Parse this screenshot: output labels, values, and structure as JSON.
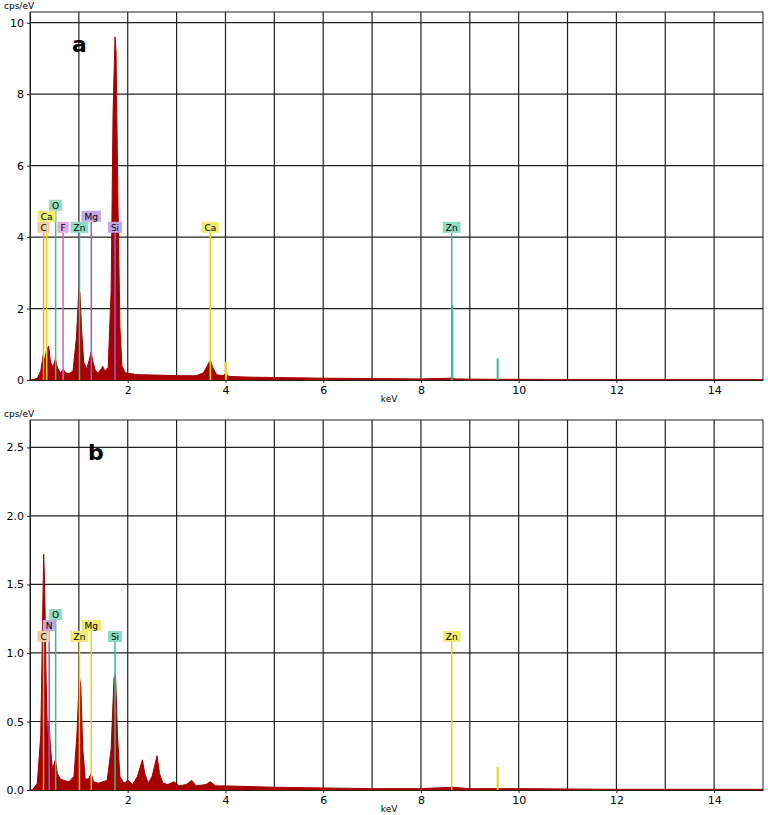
{
  "chart_data": [
    {
      "type": "area",
      "title": "a",
      "x_label": "keV",
      "y_label": "cps/eV",
      "xlim": [
        0,
        15
      ],
      "xticks": [
        2,
        4,
        6,
        8,
        10,
        12,
        14
      ],
      "x_minor_ticks": [
        1,
        3,
        5,
        7,
        9,
        11,
        13
      ],
      "ylim": [
        0,
        10.3
      ],
      "yticks": [
        0,
        2,
        4,
        6,
        8,
        10
      ],
      "grid": true,
      "series": [
        {
          "color": "#a80000",
          "x": [
            0.05,
            0.15,
            0.22,
            0.27,
            0.3,
            0.34,
            0.38,
            0.42,
            0.47,
            0.52,
            0.56,
            0.62,
            0.68,
            0.73,
            0.8,
            0.88,
            0.95,
            1.0,
            1.02,
            1.06,
            1.1,
            1.16,
            1.21,
            1.25,
            1.29,
            1.34,
            1.4,
            1.45,
            1.49,
            1.53,
            1.6,
            1.66,
            1.7,
            1.74,
            1.76,
            1.8,
            1.84,
            1.88,
            1.95,
            2.05,
            2.2,
            2.5,
            2.8,
            3.1,
            3.4,
            3.55,
            3.65,
            3.69,
            3.74,
            3.82,
            3.95,
            4.01,
            4.07,
            4.5,
            5.0,
            6.0,
            7.0,
            8.0,
            8.6,
            8.64,
            8.7,
            9.5,
            10,
            11,
            12,
            13,
            14,
            15
          ],
          "values": [
            0,
            0.05,
            0.25,
            0.7,
            0.55,
            0.85,
            0.95,
            0.5,
            0.35,
            0.6,
            0.35,
            0.2,
            0.3,
            0.2,
            0.18,
            0.25,
            1.2,
            2.5,
            2.45,
            1.3,
            0.5,
            0.3,
            0.55,
            0.78,
            0.5,
            0.25,
            0.2,
            0.3,
            0.38,
            0.25,
            0.35,
            2.5,
            7.5,
            9.6,
            9.2,
            5.0,
            1.5,
            0.4,
            0.2,
            0.18,
            0.15,
            0.14,
            0.13,
            0.12,
            0.12,
            0.2,
            0.45,
            0.55,
            0.35,
            0.15,
            0.12,
            0.18,
            0.1,
            0.08,
            0.07,
            0.05,
            0.04,
            0.03,
            0.05,
            0.07,
            0.03,
            0.02,
            0.02,
            0.01,
            0.01,
            0.01,
            0.01,
            0.01
          ]
        }
      ],
      "markers": [
        {
          "label": "C",
          "x": 0.277,
          "color": "#e8a050"
        },
        {
          "label": "Ca",
          "x": 0.341,
          "color": "#e6d800"
        },
        {
          "label": "O",
          "x": 0.525,
          "color": "#40c080"
        },
        {
          "label": "F",
          "x": 0.677,
          "color": "#d060d0"
        },
        {
          "label": "Zn",
          "x": 1.012,
          "color": "#30c090"
        },
        {
          "label": "Mg",
          "x": 1.254,
          "color": "#9060d0"
        },
        {
          "label": "Si",
          "x": 1.74,
          "color": "#9060d0"
        },
        {
          "label": "Ca",
          "x": 3.69,
          "color": "#e6d800"
        },
        {
          "label": "Zn",
          "x": 8.63,
          "color": "#30c090"
        }
      ],
      "extra_lines": [
        {
          "x": 8.64,
          "y": 2.1,
          "color": "#30c090"
        },
        {
          "x": 9.57,
          "y": 0.6,
          "color": "#30c090"
        },
        {
          "x": 4.01,
          "y": 0.5,
          "color": "#e6d800"
        }
      ]
    },
    {
      "type": "area",
      "title": "b",
      "x_label": "keV",
      "y_label": "cps/eV",
      "xlim": [
        0,
        15
      ],
      "xticks": [
        2,
        4,
        6,
        8,
        10,
        12,
        14
      ],
      "x_minor_ticks": [
        1,
        3,
        5,
        7,
        9,
        11,
        13
      ],
      "ylim": [
        0,
        2.7
      ],
      "yticks": [
        {
          "value": 0,
          "label": "0.0"
        },
        {
          "value": 0.5,
          "label": "0.5"
        },
        {
          "value": 1,
          "label": "1.0"
        },
        {
          "value": 1.5,
          "label": "1.5"
        },
        {
          "value": 2,
          "label": "2.0"
        },
        {
          "value": 2.5,
          "label": "2.5"
        }
      ],
      "grid": true,
      "series": [
        {
          "color": "#a80000",
          "x": [
            0.05,
            0.15,
            0.22,
            0.26,
            0.28,
            0.3,
            0.33,
            0.36,
            0.39,
            0.42,
            0.46,
            0.52,
            0.56,
            0.62,
            0.7,
            0.8,
            0.9,
            0.96,
            1.01,
            1.04,
            1.08,
            1.13,
            1.2,
            1.25,
            1.3,
            1.4,
            1.49,
            1.58,
            1.66,
            1.72,
            1.75,
            1.79,
            1.84,
            1.92,
            2.01,
            2.1,
            2.2,
            2.3,
            2.35,
            2.42,
            2.5,
            2.6,
            2.65,
            2.72,
            2.82,
            2.95,
            3.05,
            3.2,
            3.31,
            3.4,
            3.6,
            3.69,
            3.8,
            4.0,
            5.0,
            6.0,
            7,
            8,
            8.63,
            9,
            10,
            12,
            15
          ],
          "values": [
            0,
            0.05,
            0.4,
            1.3,
            1.72,
            1.5,
            0.8,
            0.35,
            0.5,
            0.3,
            0.15,
            0.22,
            0.12,
            0.08,
            0.07,
            0.06,
            0.1,
            0.4,
            0.83,
            0.75,
            0.3,
            0.08,
            0.08,
            0.12,
            0.06,
            0.05,
            0.06,
            0.07,
            0.3,
            0.82,
            0.84,
            0.4,
            0.1,
            0.05,
            0.07,
            0.04,
            0.1,
            0.22,
            0.12,
            0.05,
            0.1,
            0.25,
            0.12,
            0.05,
            0.04,
            0.06,
            0.03,
            0.04,
            0.07,
            0.03,
            0.04,
            0.06,
            0.03,
            0.03,
            0.02,
            0.015,
            0.01,
            0.01,
            0.02,
            0.01,
            0.01,
            0.005,
            0.005
          ]
        }
      ],
      "markers": [
        {
          "label": "C",
          "x": 0.277,
          "color": "#e8a050"
        },
        {
          "label": "N",
          "x": 0.392,
          "color": "#9060d0"
        },
        {
          "label": "O",
          "x": 0.525,
          "color": "#30c090"
        },
        {
          "label": "Zn",
          "x": 1.012,
          "color": "#e6d800"
        },
        {
          "label": "Mg",
          "x": 1.254,
          "color": "#e6d800"
        },
        {
          "label": "Si",
          "x": 1.74,
          "color": "#30c090"
        },
        {
          "label": "Zn",
          "x": 8.63,
          "color": "#e6d800"
        }
      ],
      "extra_lines": [
        {
          "x": 9.57,
          "y": 0.17,
          "color": "#e6d800"
        }
      ]
    }
  ]
}
